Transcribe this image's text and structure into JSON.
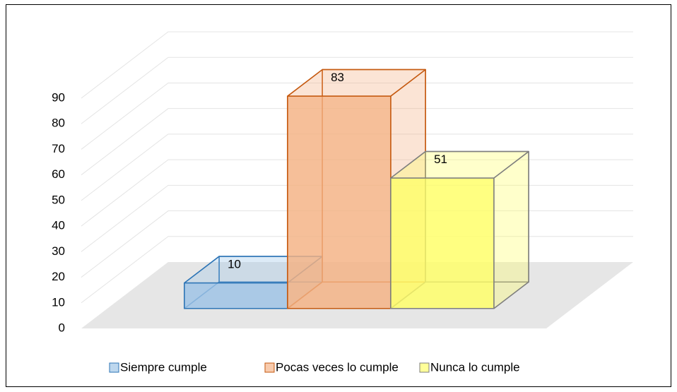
{
  "chart_data": {
    "type": "bar3d",
    "series": [
      {
        "name": "Siempre cumple",
        "values": [
          10
        ],
        "color": "#9dc3e6",
        "edge": "#2e75b6",
        "legend_color": "#bdd7ee"
      },
      {
        "name": "Pocas veces lo cumple",
        "values": [
          83
        ],
        "color": "#f4b183",
        "edge": "#c55a11",
        "legend_color": "#f8cbad"
      },
      {
        "name": "Nunca lo cumple",
        "values": [
          51
        ],
        "color": "#ffff66",
        "edge": "#7f7f7f",
        "legend_color": "#ffff99"
      }
    ],
    "ylim": [
      0,
      90
    ],
    "yticks": [
      0,
      10,
      20,
      30,
      40,
      50,
      60,
      70,
      80,
      90
    ],
    "grid": true,
    "legend": "bottom"
  }
}
